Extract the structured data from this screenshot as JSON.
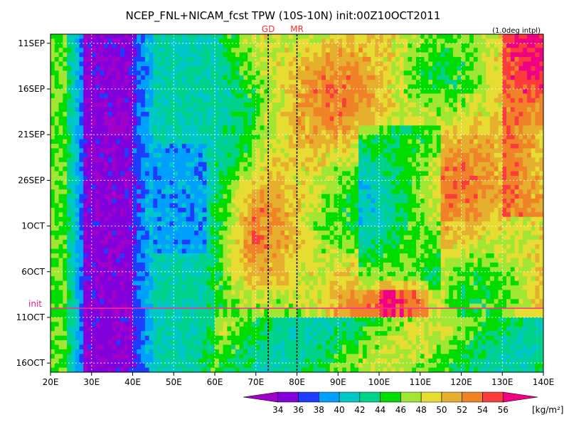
{
  "chart_data": {
    "type": "heatmap",
    "title": "NCEP_FNL+NICAM_fcst TPW (10S-10N) init:00Z10OCT2011",
    "subtitle": "(1.0deg intpl)",
    "x_ticks": [
      "20E",
      "30E",
      "40E",
      "50E",
      "60E",
      "70E",
      "80E",
      "90E",
      "100E",
      "110E",
      "120E",
      "130E",
      "140E"
    ],
    "x_range": [
      20,
      140
    ],
    "y_ticks": [
      "11SEP",
      "16SEP",
      "21SEP",
      "26SEP",
      "1OCT",
      "6OCT",
      "11OCT",
      "16OCT"
    ],
    "y_range_days": [
      "10SEP2011",
      "17OCT2011"
    ],
    "init_label": "init",
    "init_date": "10OCT2011",
    "markers": [
      {
        "label": "GD",
        "lon": 73
      },
      {
        "label": "MR",
        "lon": 80
      }
    ],
    "colorbar": {
      "levels": [
        "34",
        "36",
        "38",
        "40",
        "42",
        "44",
        "46",
        "48",
        "50",
        "52",
        "54",
        "56"
      ],
      "unit": "[kg/m²]",
      "colors": [
        "#a000c8",
        "#8200dc",
        "#1e3cff",
        "#00a0ff",
        "#00c8c8",
        "#00d28c",
        "#00dc00",
        "#a0e632",
        "#e6dc32",
        "#e6af2d",
        "#f08228",
        "#fa3c3c",
        "#f00082"
      ]
    },
    "grid": true
  }
}
